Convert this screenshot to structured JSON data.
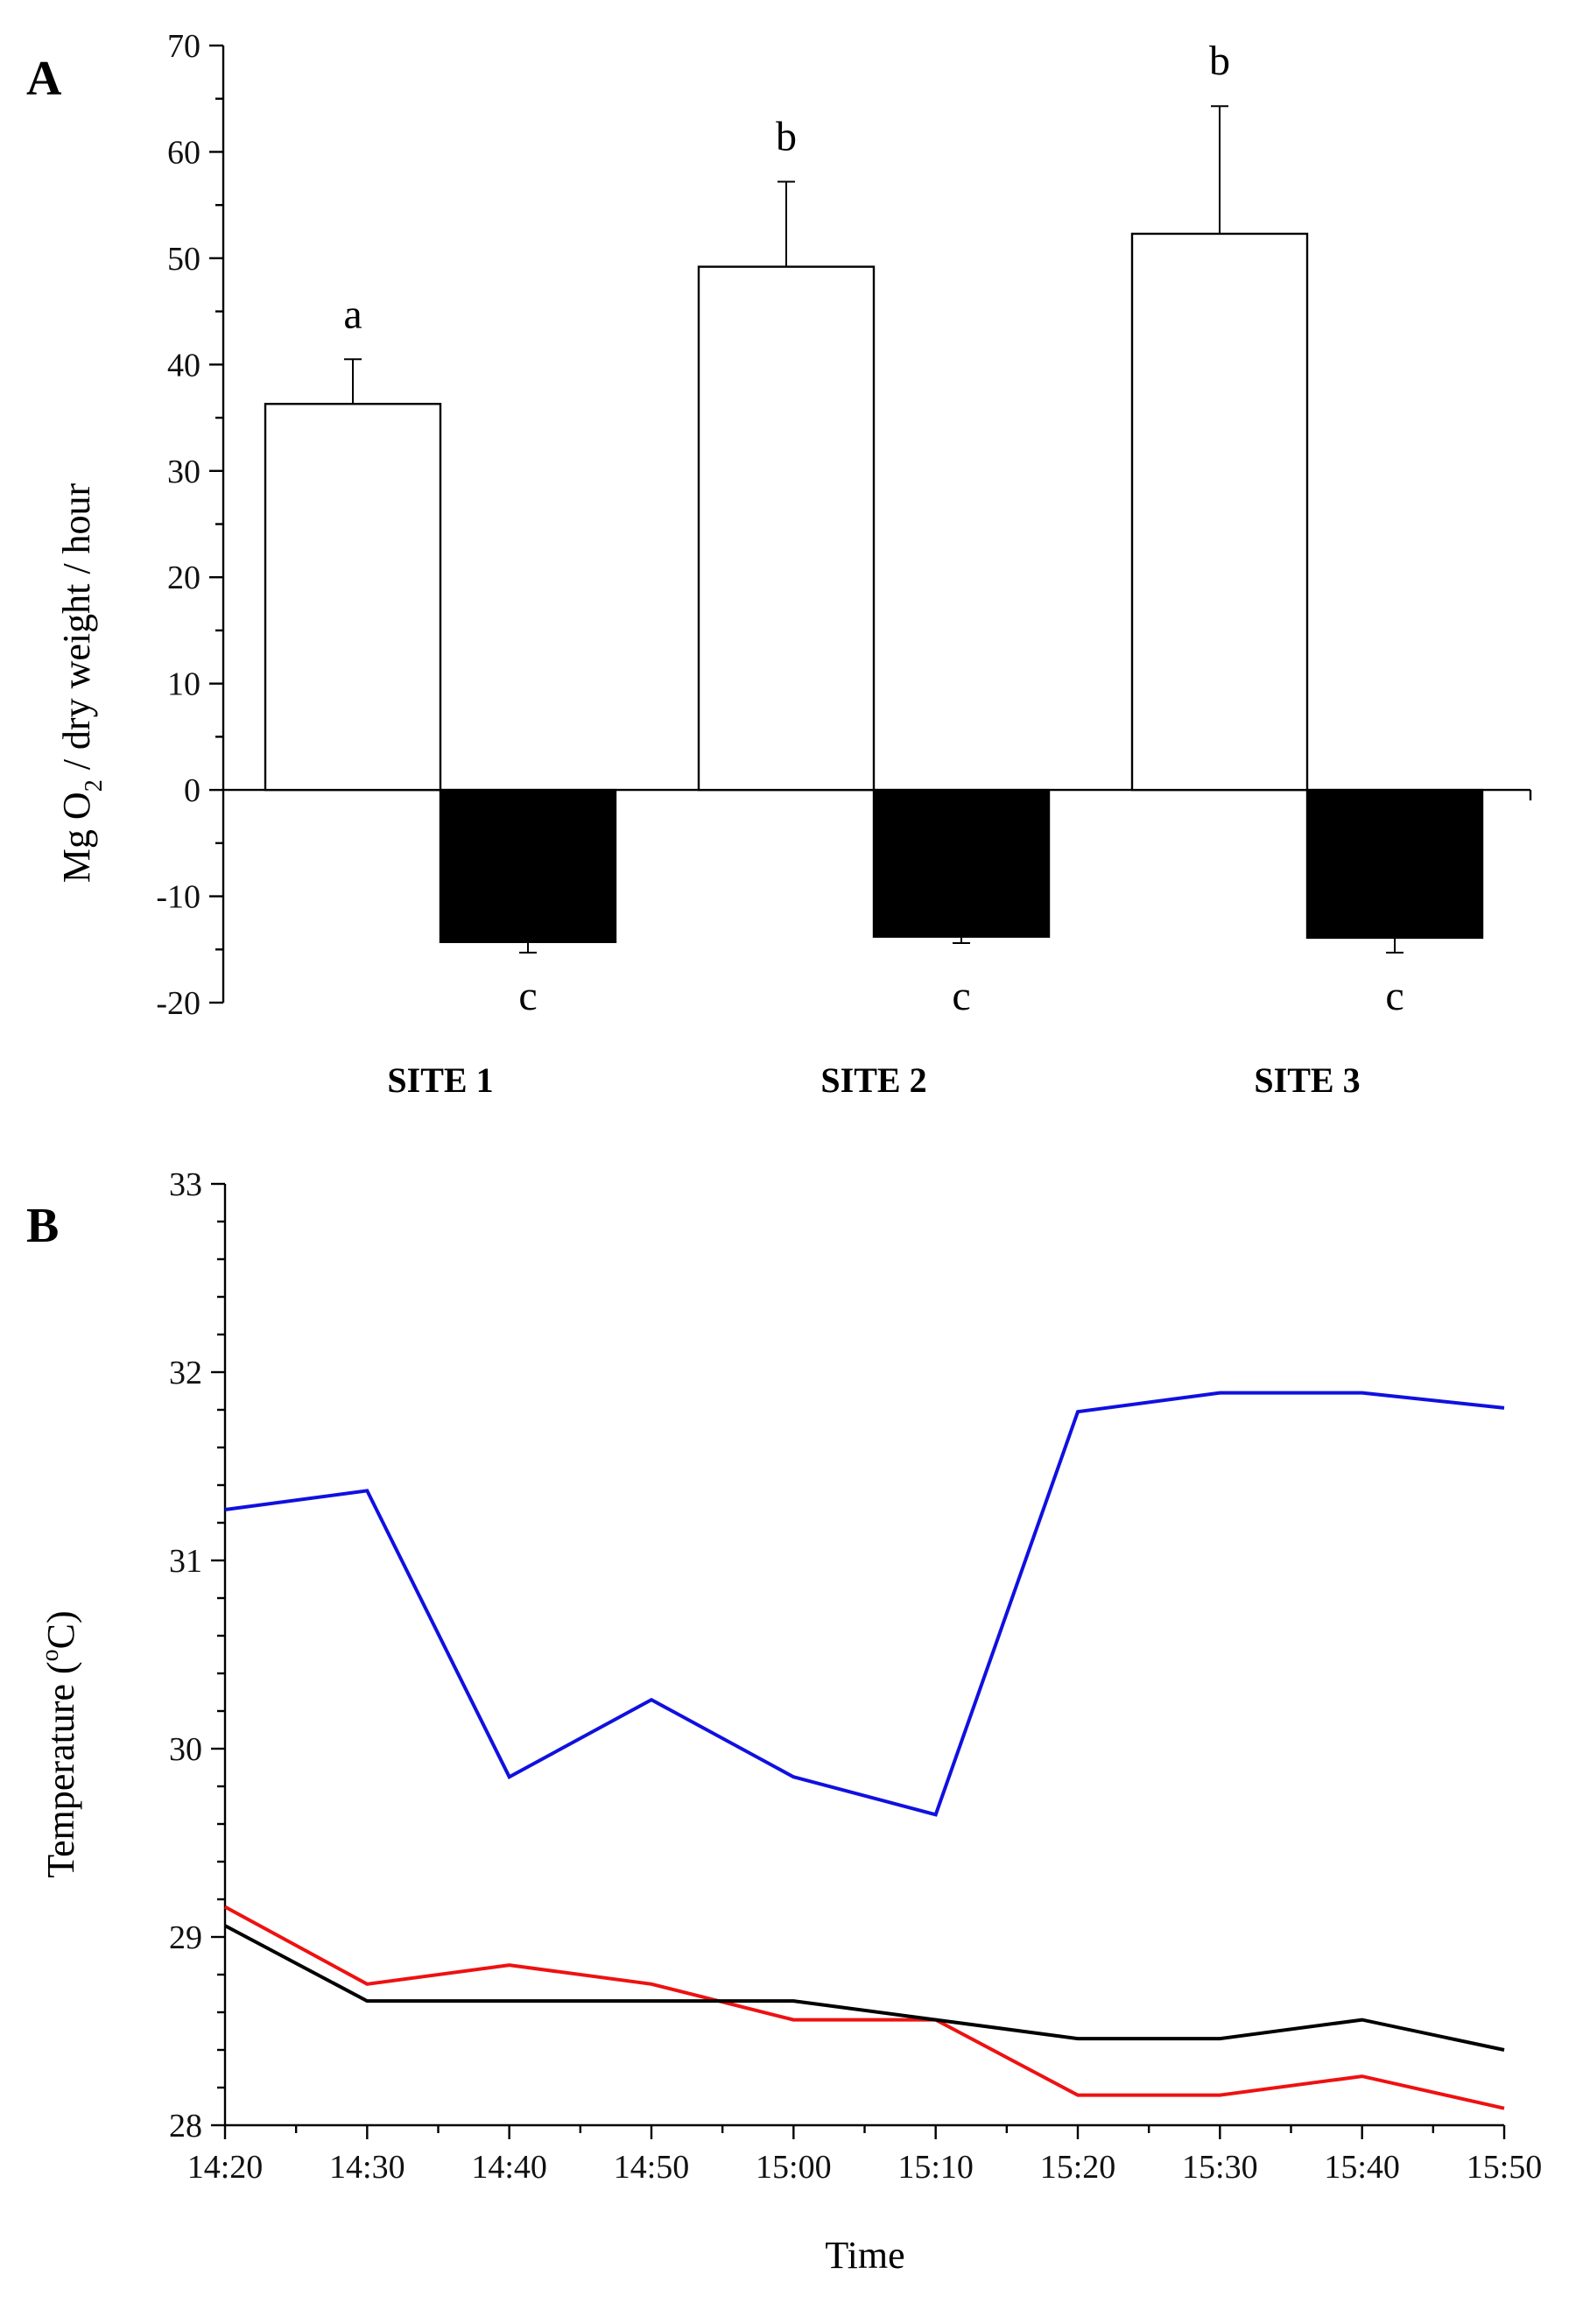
{
  "chart_data": [
    {
      "type": "bar",
      "panel": "A",
      "ylabel_main": "Mg O",
      "ylabel_sub": "2",
      "ylabel_rest": " / dry weight / hour",
      "ylim": [
        -20,
        70
      ],
      "ytick_values": [
        -20,
        -10,
        0,
        10,
        20,
        30,
        40,
        50,
        60,
        70
      ],
      "ytick_labels": [
        "-20",
        "-10",
        "0",
        "10",
        "20",
        "30",
        "40",
        "50",
        "60",
        "70"
      ],
      "categories": [
        "SITE 1",
        "SITE 2",
        "SITE 3"
      ],
      "series": [
        {
          "name": "positive",
          "color": "#ffffff",
          "values": [
            36.3,
            49.2,
            52.3
          ],
          "errors": [
            4.2,
            8.0,
            12.0
          ],
          "sig_labels": [
            "a",
            "b",
            "b"
          ]
        },
        {
          "name": "negative",
          "color": "#000000",
          "values": [
            -14.3,
            -13.8,
            -13.9
          ],
          "errors": [
            1.0,
            0.6,
            1.4
          ],
          "sig_labels": [
            "c",
            "c",
            "c"
          ]
        }
      ]
    },
    {
      "type": "line",
      "panel": "B",
      "xlabel": "Time",
      "ylabel_main": "Temperature (",
      "ylabel_sup": "o",
      "ylabel_rest": "C)",
      "ylim": [
        28,
        33
      ],
      "ytick_values": [
        28,
        29,
        30,
        31,
        32,
        33
      ],
      "ytick_labels": [
        "28",
        "29",
        "30",
        "31",
        "32",
        "33"
      ],
      "x": [
        "14:20",
        "14:30",
        "14:40",
        "14:50",
        "15:00",
        "15:10",
        "15:20",
        "15:30",
        "15:40",
        "15:50"
      ],
      "series": [
        {
          "name": "blue",
          "color": "#1010e0",
          "values": [
            31.27,
            31.37,
            29.85,
            30.26,
            29.85,
            29.65,
            31.79,
            31.89,
            31.89,
            31.81
          ]
        },
        {
          "name": "red",
          "color": "#ee1111",
          "values": [
            29.16,
            28.75,
            28.85,
            28.75,
            28.56,
            28.56,
            28.16,
            28.16,
            28.26,
            28.09
          ]
        },
        {
          "name": "black",
          "color": "#000000",
          "values": [
            29.06,
            28.66,
            28.66,
            28.66,
            28.66,
            28.56,
            28.46,
            28.46,
            28.56,
            28.4
          ]
        }
      ]
    }
  ]
}
